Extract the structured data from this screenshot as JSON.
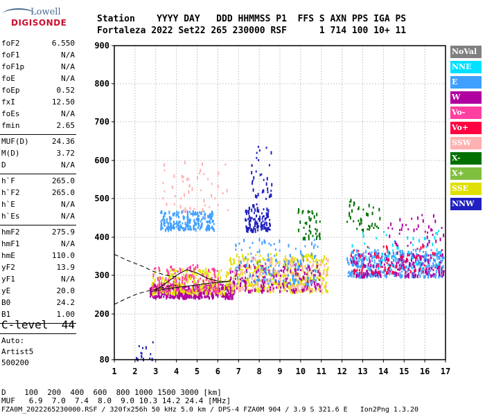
{
  "logo": {
    "line1": "Lowell",
    "line2": "DIGISONDE"
  },
  "header": {
    "line1": "Station    YYYY DAY   DDD HHMMSS P1  FFS S AXN PPS IGA PS",
    "line2": "Fortaleza 2022 Set22 265 230000 RSF      1 714 100 10+ 11"
  },
  "params": [
    {
      "name": "foF2",
      "value": "6.550"
    },
    {
      "name": "foF1",
      "value": "N/A"
    },
    {
      "name": "foF1p",
      "value": "N/A"
    },
    {
      "name": "foE",
      "value": "N/A"
    },
    {
      "name": "foEp",
      "value": "0.52"
    },
    {
      "name": "fxI",
      "value": "12.50"
    },
    {
      "name": "foEs",
      "value": "N/A"
    },
    {
      "name": "fmin",
      "value": "2.65"
    },
    {
      "name": "MUF(D)",
      "value": "24.36"
    },
    {
      "name": "M(D)",
      "value": "3.72"
    },
    {
      "name": "D",
      "value": "N/A"
    },
    {
      "name": "h`F",
      "value": "265.0"
    },
    {
      "name": "h`F2",
      "value": "265.0"
    },
    {
      "name": "h`E",
      "value": "N/A"
    },
    {
      "name": "h`Es",
      "value": "N/A"
    },
    {
      "name": "hmF2",
      "value": "275.9"
    },
    {
      "name": "hmF1",
      "value": "N/A"
    },
    {
      "name": "hmE",
      "value": "110.0"
    },
    {
      "name": "yF2",
      "value": "13.9"
    },
    {
      "name": "yF1",
      "value": "N/A"
    },
    {
      "name": "yE",
      "value": "20.0"
    },
    {
      "name": "B0",
      "value": "24.2"
    },
    {
      "name": "B1",
      "value": "1.00"
    }
  ],
  "clevel": {
    "name": "C-level",
    "value": "44"
  },
  "auto": {
    "line1": "Auto:",
    "line2": "Artist5",
    "line3": "500200"
  },
  "legend": [
    {
      "label": "NoVal",
      "color": "#808080"
    },
    {
      "label": "NNE",
      "color": "#00e0ff"
    },
    {
      "label": "E",
      "color": "#40a0ff"
    },
    {
      "label": "W",
      "color": "#b000a0"
    },
    {
      "label": "Vo-",
      "color": "#ff40a0"
    },
    {
      "label": "Vo+",
      "color": "#ff0040"
    },
    {
      "label": "SSW",
      "color": "#ffb0b0"
    },
    {
      "label": "X-",
      "color": "#007000"
    },
    {
      "label": "X+",
      "color": "#80c040"
    },
    {
      "label": "SSE",
      "color": "#e0e000"
    },
    {
      "label": "NNW",
      "color": "#2020c0"
    }
  ],
  "bottom": {
    "d_row": "D    100  200  400  600  800 1000 1500 3000 [km]",
    "muf_row": "MUF   6.9  7.0  7.4  8.0  9.0 10.3 14.2 24.4 [MHz]",
    "footer": "FZA0M_2022265230000.RSF / 320fx256h 50 kHz 5.0 km / DPS-4 FZA0M 904 / 3.9 S 321.6 E   Ion2Png 1.3.20"
  },
  "chart_data": {
    "type": "scatter",
    "xlim": [
      1,
      17
    ],
    "ylim": [
      80,
      900
    ],
    "x_ticks": [
      "1",
      "2",
      "3",
      "4",
      "5",
      "6",
      "7",
      "8",
      "9",
      "10",
      "11",
      "12",
      "13",
      "14",
      "15",
      "16",
      "17"
    ],
    "y_ticks": [
      "80",
      "200",
      "300",
      "400",
      "500",
      "600",
      "700",
      "800",
      "900"
    ],
    "grid": true,
    "echo_clusters": [
      {
        "f_min": 2.7,
        "f_max": 6.8,
        "h_min": 245,
        "h_max": 280,
        "color": "#b000a0",
        "density": 420
      },
      {
        "f_min": 2.8,
        "f_max": 6.6,
        "h_min": 255,
        "h_max": 320,
        "color": "#e0e000",
        "density": 260
      },
      {
        "f_min": 2.8,
        "f_max": 6.0,
        "h_min": 260,
        "h_max": 330,
        "color": "#ff40a0",
        "density": 150
      },
      {
        "f_min": 6.5,
        "f_max": 11.3,
        "h_min": 260,
        "h_max": 360,
        "color": "#e0e000",
        "density": 380
      },
      {
        "f_min": 6.5,
        "f_max": 11.3,
        "h_min": 265,
        "h_max": 350,
        "color": "#ffb0b0",
        "density": 220
      },
      {
        "f_min": 6.5,
        "f_max": 11.0,
        "h_min": 260,
        "h_max": 330,
        "color": "#b000a0",
        "density": 160
      },
      {
        "f_min": 6.8,
        "f_max": 10.8,
        "h_min": 280,
        "h_max": 400,
        "color": "#40a0ff",
        "density": 140
      },
      {
        "f_min": 3.2,
        "f_max": 5.8,
        "h_min": 420,
        "h_max": 470,
        "color": "#40a0ff",
        "density": 220
      },
      {
        "f_min": 3.3,
        "f_max": 6.5,
        "h_min": 470,
        "h_max": 600,
        "color": "#ffb0b0",
        "density": 50
      },
      {
        "f_min": 7.3,
        "f_max": 8.5,
        "h_min": 420,
        "h_max": 480,
        "color": "#2020c0",
        "density": 110
      },
      {
        "f_min": 7.5,
        "f_max": 8.6,
        "h_min": 480,
        "h_max": 640,
        "color": "#2020c0",
        "density": 40
      },
      {
        "f_min": 9.8,
        "f_max": 11.0,
        "h_min": 400,
        "h_max": 480,
        "color": "#007000",
        "density": 40
      },
      {
        "f_min": 12.2,
        "f_max": 13.8,
        "h_min": 420,
        "h_max": 500,
        "color": "#007000",
        "density": 40
      },
      {
        "f_min": 12.2,
        "f_max": 16.9,
        "h_min": 300,
        "h_max": 370,
        "color": "#40a0ff",
        "density": 360
      },
      {
        "f_min": 12.4,
        "f_max": 16.9,
        "h_min": 300,
        "h_max": 360,
        "color": "#b000a0",
        "density": 180
      },
      {
        "f_min": 12.4,
        "f_max": 16.8,
        "h_min": 310,
        "h_max": 380,
        "color": "#ff0040",
        "density": 80
      },
      {
        "f_min": 12.4,
        "f_max": 16.8,
        "h_min": 320,
        "h_max": 420,
        "color": "#00e0ff",
        "density": 60
      },
      {
        "f_min": 14.2,
        "f_max": 16.9,
        "h_min": 380,
        "h_max": 460,
        "color": "#b000a0",
        "density": 40
      },
      {
        "f_min": 2.0,
        "f_max": 2.9,
        "h_min": 84,
        "h_max": 130,
        "color": "#2020c0",
        "density": 14
      }
    ],
    "trace_curves": [
      {
        "style": "dashed",
        "points": [
          [
            1.0,
            355
          ],
          [
            1.6,
            340
          ],
          [
            2.3,
            325
          ],
          [
            2.9,
            310
          ],
          [
            3.5,
            300
          ],
          [
            4.0,
            296
          ]
        ]
      },
      {
        "style": "dashed",
        "points": [
          [
            1.0,
            225
          ],
          [
            1.5,
            238
          ],
          [
            2.1,
            252
          ],
          [
            2.8,
            262
          ],
          [
            3.5,
            270
          ],
          [
            4.0,
            275
          ]
        ]
      },
      {
        "style": "solid",
        "points": [
          [
            2.8,
            258
          ],
          [
            3.5,
            265
          ],
          [
            4.2,
            270
          ],
          [
            5.0,
            275
          ],
          [
            5.6,
            280
          ],
          [
            6.2,
            282
          ],
          [
            6.6,
            285
          ]
        ]
      },
      {
        "style": "solid",
        "points": [
          [
            3.0,
            262
          ],
          [
            3.5,
            280
          ],
          [
            4.0,
            300
          ],
          [
            4.5,
            315
          ],
          [
            5.0,
            306
          ],
          [
            5.5,
            292
          ],
          [
            6.0,
            285
          ],
          [
            6.5,
            283
          ]
        ]
      }
    ]
  }
}
